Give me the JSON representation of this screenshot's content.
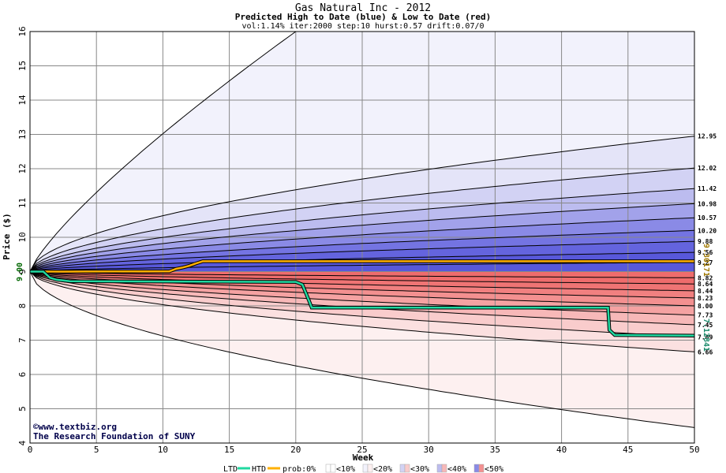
{
  "chart_data": {
    "type": "area",
    "title": "Gas Natural Inc - 2012",
    "subtitle": "Predicted High to Date (blue) &  Low to Date (red)",
    "params": "vol:1.14% iter:2000 step:10 hurst:0.57 drift:0.07/0",
    "xlabel": "Week",
    "ylabel": "Price ($)",
    "xlim": [
      0,
      50
    ],
    "ylim": [
      4,
      16
    ],
    "x_ticks": [
      "0",
      "5",
      "10",
      "15",
      "20",
      "25",
      "30",
      "35",
      "40",
      "45",
      "50"
    ],
    "y_ticks": [
      "4",
      "5",
      "6",
      "7",
      "8",
      "9",
      "10",
      "11",
      "12",
      "13",
      "14",
      "15",
      "16"
    ],
    "grid": true,
    "start_price": 9.0,
    "start_label": "9.00",
    "upper_levels": [
      9.27,
      9.56,
      9.88,
      10.2,
      10.57,
      10.98,
      11.42,
      12.02,
      12.95
    ],
    "upper_labels": [
      "9.27",
      "9.56",
      "9.88",
      "10.20",
      "10.57",
      "10.98",
      "11.42",
      "12.02",
      "12.95"
    ],
    "lower_levels": [
      8.82,
      8.64,
      8.44,
      8.23,
      8.0,
      7.73,
      7.45,
      7.09,
      6.66
    ],
    "lower_labels": [
      "8.82",
      "8.64",
      "8.44",
      "8.23",
      "8.00",
      "7.73",
      "7.45",
      "7.09",
      "6.66"
    ],
    "outer_upper_level_at_week_20": 16.0,
    "outer_lower_end": 4.45,
    "htd_label": "9.30171",
    "ltd_label": "7.12841",
    "htd_series": {
      "name": "HTD",
      "points": [
        [
          0,
          9.0
        ],
        [
          1,
          9.0
        ],
        [
          3,
          9.0
        ],
        [
          10.5,
          9.01
        ],
        [
          11,
          9.08
        ],
        [
          11.5,
          9.12
        ],
        [
          12,
          9.17
        ],
        [
          12.5,
          9.24
        ],
        [
          13,
          9.3
        ],
        [
          50,
          9.3
        ]
      ]
    },
    "ltd_series": {
      "name": "LTD",
      "points": [
        [
          0,
          9.0
        ],
        [
          1,
          9.0
        ],
        [
          1.5,
          8.82
        ],
        [
          2,
          8.76
        ],
        [
          2.5,
          8.74
        ],
        [
          3,
          8.72
        ],
        [
          20,
          8.7
        ],
        [
          20.5,
          8.62
        ],
        [
          21,
          8.15
        ],
        [
          21.2,
          7.95
        ],
        [
          43.5,
          7.95
        ],
        [
          43.6,
          7.3
        ],
        [
          44,
          7.15
        ],
        [
          50,
          7.13
        ]
      ]
    },
    "legend": [
      "LTD",
      "HTD",
      "prob:0%",
      "<10%",
      "<20%",
      "<30%",
      "<40%",
      "<50%"
    ],
    "upper_band_colors": [
      "#f2f2fc",
      "#e4e4f8",
      "#d2d2f4",
      "#bcbcef",
      "#a2a2ea",
      "#8a8ae6",
      "#7474e2",
      "#6464de",
      "#5858da"
    ],
    "lower_band_colors": [
      "#fdf0f0",
      "#fbe0e0",
      "#f9cccc",
      "#f7b8b8",
      "#f5a2a2",
      "#f39090",
      "#f18080",
      "#ef7474",
      "#ee6c6c"
    ],
    "htd_color": "#ffb000",
    "ltd_color": "#20d8a0"
  },
  "credits": {
    "line1": "©www.textbiz.org",
    "line2": "The Research Foundation of SUNY"
  }
}
